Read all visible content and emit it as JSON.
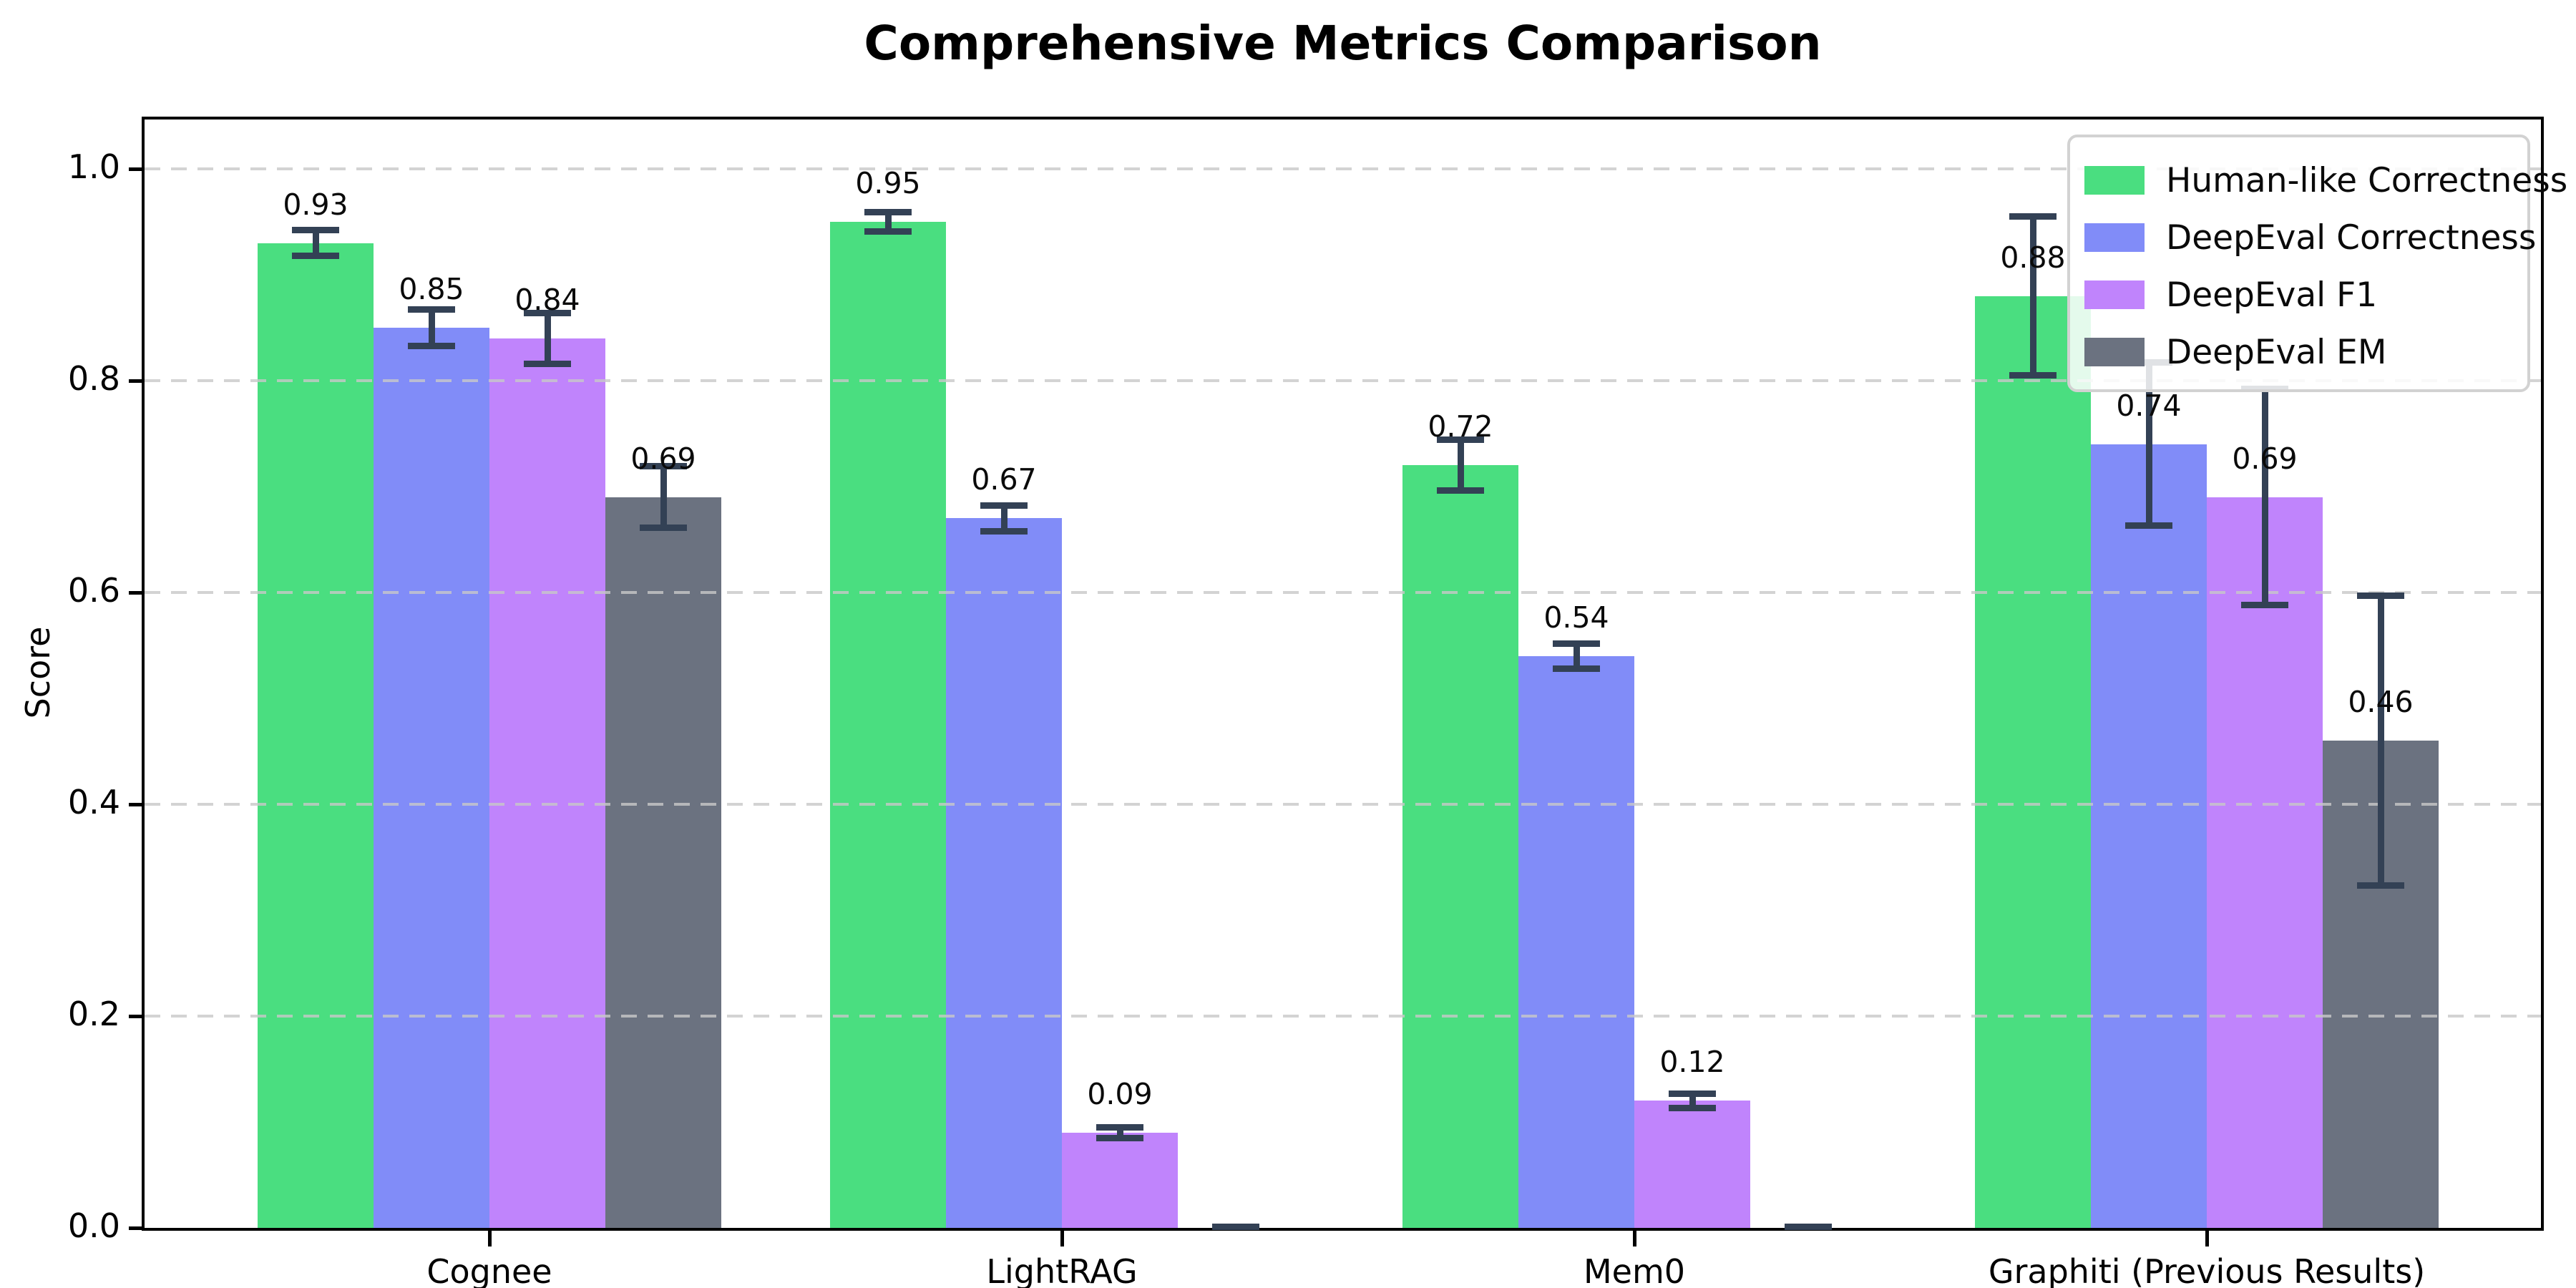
{
  "chart_data": {
    "type": "bar",
    "title": "Comprehensive Metrics Comparison",
    "ylabel": "Score",
    "xlabel": "",
    "categories": [
      "Cognee",
      "LightRAG",
      "Mem0",
      "Graphiti (Previous Results)"
    ],
    "series": [
      {
        "name": "Human-like Correctness",
        "color": "#4ade80",
        "values": [
          0.93,
          0.95,
          0.72,
          0.88
        ],
        "errors": [
          0.015,
          0.012,
          0.027,
          0.078
        ]
      },
      {
        "name": "DeepEval Correctness",
        "color": "#818cf8",
        "values": [
          0.85,
          0.67,
          0.54,
          0.74
        ],
        "errors": [
          0.02,
          0.015,
          0.015,
          0.08
        ]
      },
      {
        "name": "DeepEval F1",
        "color": "#c084fc",
        "values": [
          0.84,
          0.09,
          0.12,
          0.69
        ],
        "errors": [
          0.027,
          0.008,
          0.01,
          0.105
        ]
      },
      {
        "name": "DeepEval EM",
        "color": "#6b7280",
        "values": [
          0.69,
          0.0,
          0.0,
          0.46
        ],
        "errors": [
          0.032,
          0.004,
          0.004,
          0.14
        ]
      }
    ],
    "yticks": [
      "0.0",
      "0.2",
      "0.4",
      "0.6",
      "0.8",
      "1.0"
    ],
    "ylim": [
      0,
      1.05
    ],
    "grid": {
      "axis": "y",
      "style": "dashed",
      "color": "#cccccc"
    },
    "legend": {
      "position": "upper-right",
      "entries": [
        "Human-like Correctness",
        "DeepEval Correctness",
        "DeepEval F1",
        "DeepEval EM"
      ]
    },
    "value_labels": {
      "decimals": 2,
      "hide_zero": true
    },
    "error_bar_color": "#334155",
    "axis_color": "#000000"
  }
}
